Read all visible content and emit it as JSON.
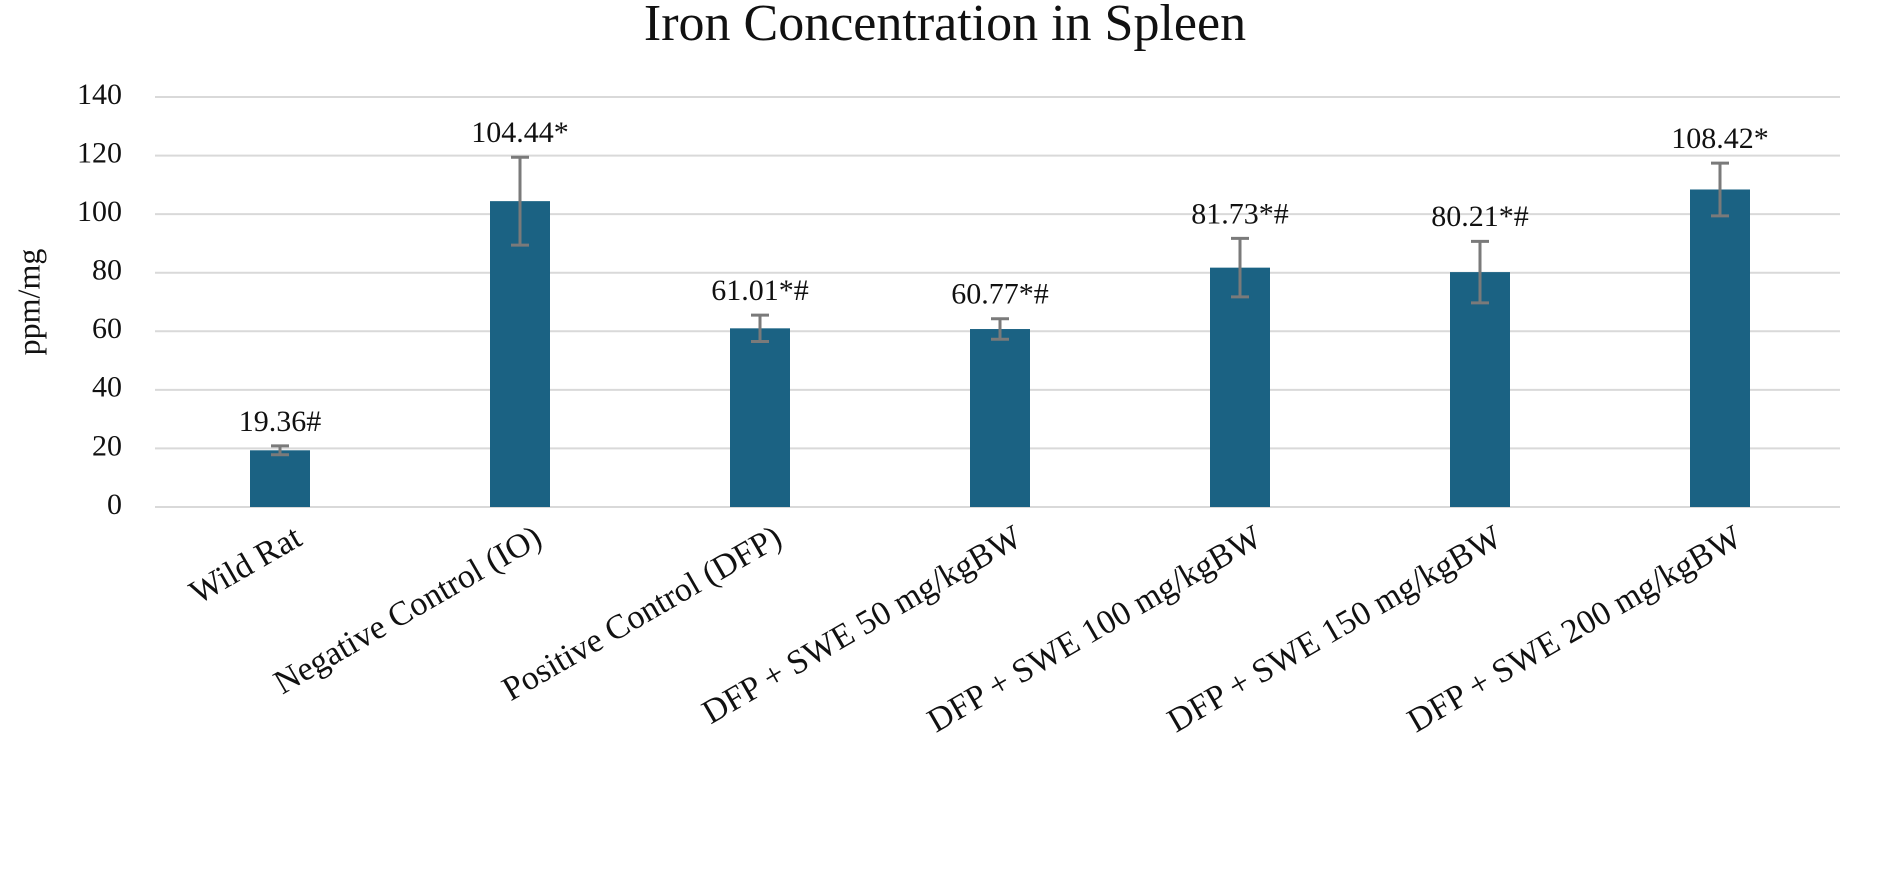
{
  "chart_data": {
    "type": "bar",
    "title": "Iron Concentration in Spleen",
    "y_label": "ppm/mg",
    "categories": [
      "Wild Rat",
      "Negative Control (IO)",
      "Positive Control (DFP)",
      "DFP + SWE 50 mg/kgBW",
      "DFP + SWE 100 mg/kgBW",
      "DFP + SWE 150 mg/kgBW",
      "DFP + SWE 200 mg/kgBW"
    ],
    "values": [
      19.36,
      104.44,
      61.01,
      60.77,
      81.73,
      80.21,
      108.42
    ],
    "value_labels": [
      "19.36#",
      "104.44*",
      "61.01*#",
      "60.77*#",
      "81.73*#",
      "80.21*#",
      "108.42*"
    ],
    "errors": [
      1.5,
      15,
      4.5,
      3.5,
      10,
      10.5,
      9
    ],
    "color": "#1b6283",
    "error_color": "#7a7a7a",
    "ylim": [
      0,
      140
    ],
    "yticks": [
      0,
      20,
      40,
      60,
      80,
      100,
      120,
      140
    ],
    "grid": true
  }
}
